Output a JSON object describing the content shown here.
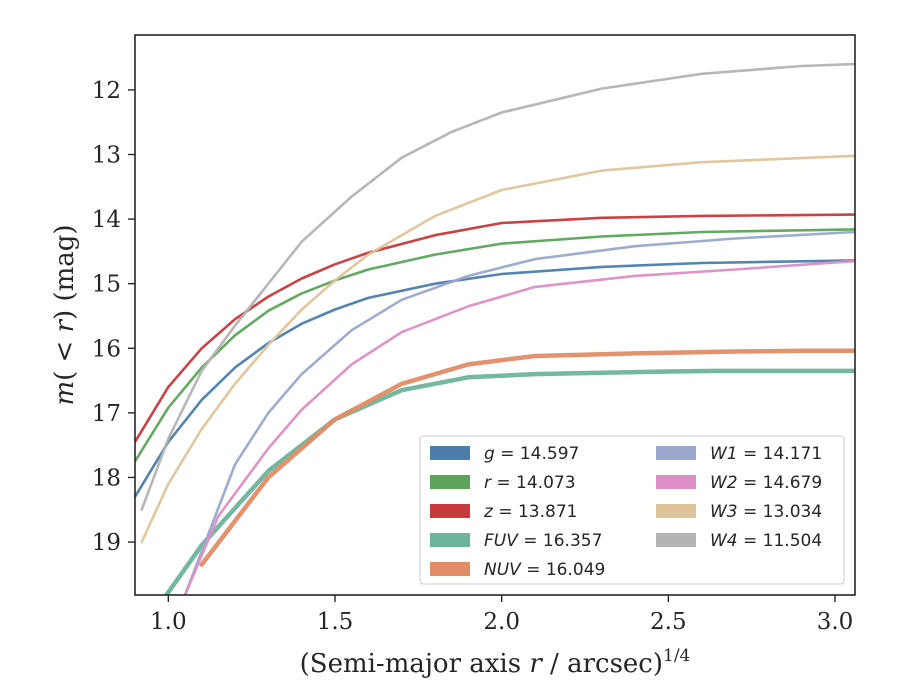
{
  "chart_data": {
    "type": "line",
    "xlabel": "(Semi-major axis r / arcsec)^1/4",
    "xlabel_parts": {
      "main": "(Semi-major axis ",
      "var": "r",
      "unit": " / arcsec)",
      "sup": "1/4"
    },
    "ylabel": "m(<r) (mag)",
    "ylabel_parts": {
      "var": "m",
      "paren": "(",
      "lt": " < ",
      "r": "r",
      "close": ")",
      "unit": " (mag)"
    },
    "xlim": [
      0.9,
      3.06
    ],
    "ylim": [
      19.82,
      11.15
    ],
    "y_inverted": true,
    "x_ticks": [
      {
        "value": 1.0,
        "label": "1.0"
      },
      {
        "value": 1.5,
        "label": "1.5"
      },
      {
        "value": 2.0,
        "label": "2.0"
      },
      {
        "value": 2.5,
        "label": "2.5"
      },
      {
        "value": 3.0,
        "label": "3.0"
      }
    ],
    "y_ticks": [
      {
        "value": 12,
        "label": "12"
      },
      {
        "value": 13,
        "label": "13"
      },
      {
        "value": 14,
        "label": "14"
      },
      {
        "value": 15,
        "label": "15"
      },
      {
        "value": 16,
        "label": "16"
      },
      {
        "value": 17,
        "label": "17"
      },
      {
        "value": 18,
        "label": "18"
      },
      {
        "value": 19,
        "label": "19"
      }
    ],
    "grid": false,
    "legend_position": "lower-right",
    "legend_columns": 2,
    "series": [
      {
        "name": "g",
        "label_math": "g",
        "label_value": "= 14.597",
        "color": "#4c7eab",
        "x": [
          0.9,
          1.0,
          1.1,
          1.2,
          1.3,
          1.4,
          1.5,
          1.6,
          1.8,
          2.0,
          2.3,
          2.6,
          3.06
        ],
        "y": [
          18.3,
          17.45,
          16.8,
          16.3,
          15.92,
          15.62,
          15.4,
          15.22,
          15.0,
          14.85,
          14.74,
          14.68,
          14.64
        ]
      },
      {
        "name": "r",
        "label_math": "r",
        "label_value": "= 14.073",
        "color": "#5aa55a",
        "x": [
          0.9,
          1.0,
          1.1,
          1.2,
          1.3,
          1.4,
          1.5,
          1.6,
          1.8,
          2.0,
          2.3,
          2.6,
          3.06
        ],
        "y": [
          17.75,
          16.92,
          16.3,
          15.8,
          15.42,
          15.15,
          14.95,
          14.78,
          14.55,
          14.38,
          14.27,
          14.2,
          14.16
        ]
      },
      {
        "name": "z",
        "label_math": "z",
        "label_value": "= 13.871",
        "color": "#c9383a",
        "x": [
          0.9,
          1.0,
          1.1,
          1.2,
          1.3,
          1.4,
          1.5,
          1.6,
          1.8,
          2.0,
          2.3,
          2.6,
          3.06
        ],
        "y": [
          17.45,
          16.6,
          16.0,
          15.55,
          15.2,
          14.92,
          14.7,
          14.52,
          14.25,
          14.06,
          13.98,
          13.95,
          13.93
        ]
      },
      {
        "name": "FUV",
        "label_math": "FUV",
        "label_value": "= 16.357",
        "color": "#6db59a",
        "x": [
          0.99,
          1.1,
          1.3,
          1.5,
          1.7,
          1.9,
          2.1,
          2.3,
          2.5,
          2.65,
          3.06
        ],
        "y": [
          19.85,
          19.05,
          17.9,
          17.1,
          16.65,
          16.45,
          16.4,
          16.38,
          16.36,
          16.35,
          16.35
        ]
      },
      {
        "name": "NUV",
        "label_math": "NUV",
        "label_value": "= 16.049",
        "color": "#e38c66",
        "x": [
          1.1,
          1.3,
          1.5,
          1.7,
          1.9,
          2.1,
          2.4,
          2.7,
          2.9,
          3.06
        ],
        "y": [
          19.35,
          18.0,
          17.1,
          16.55,
          16.25,
          16.12,
          16.08,
          16.05,
          16.04,
          16.04
        ]
      },
      {
        "name": "W1",
        "label_math": "W1",
        "label_value": "= 14.171",
        "color": "#99a8cc",
        "x": [
          1.05,
          1.2,
          1.3,
          1.4,
          1.55,
          1.7,
          1.9,
          2.1,
          2.4,
          2.7,
          3.06
        ],
        "y": [
          19.82,
          17.8,
          17.0,
          16.4,
          15.72,
          15.25,
          14.88,
          14.62,
          14.42,
          14.3,
          14.2
        ]
      },
      {
        "name": "W2",
        "label_math": "W2",
        "label_value": "= 14.679",
        "color": "#dd8ec4",
        "x": [
          1.05,
          1.15,
          1.3,
          1.4,
          1.55,
          1.7,
          1.9,
          2.1,
          2.4,
          2.7,
          3.06
        ],
        "y": [
          19.82,
          18.6,
          17.55,
          16.95,
          16.25,
          15.75,
          15.35,
          15.05,
          14.88,
          14.78,
          14.65
        ]
      },
      {
        "name": "W3",
        "label_math": "W3",
        "label_value": "= 13.034",
        "color": "#dfc39a",
        "x": [
          0.92,
          1.0,
          1.1,
          1.2,
          1.3,
          1.4,
          1.5,
          1.6,
          1.8,
          2.0,
          2.3,
          2.6,
          3.06
        ],
        "y": [
          19.0,
          18.1,
          17.25,
          16.55,
          15.95,
          15.4,
          14.95,
          14.55,
          13.95,
          13.55,
          13.25,
          13.12,
          13.02
        ]
      },
      {
        "name": "W4",
        "label_math": "W4",
        "label_value": "= 11.504",
        "color": "#b3b3b3",
        "x": [
          0.92,
          1.0,
          1.1,
          1.2,
          1.3,
          1.4,
          1.55,
          1.7,
          1.85,
          2.0,
          2.3,
          2.6,
          2.9,
          3.06
        ],
        "y": [
          18.5,
          17.4,
          16.35,
          15.65,
          15.0,
          14.35,
          13.65,
          13.05,
          12.65,
          12.35,
          11.98,
          11.75,
          11.63,
          11.6
        ]
      }
    ]
  }
}
